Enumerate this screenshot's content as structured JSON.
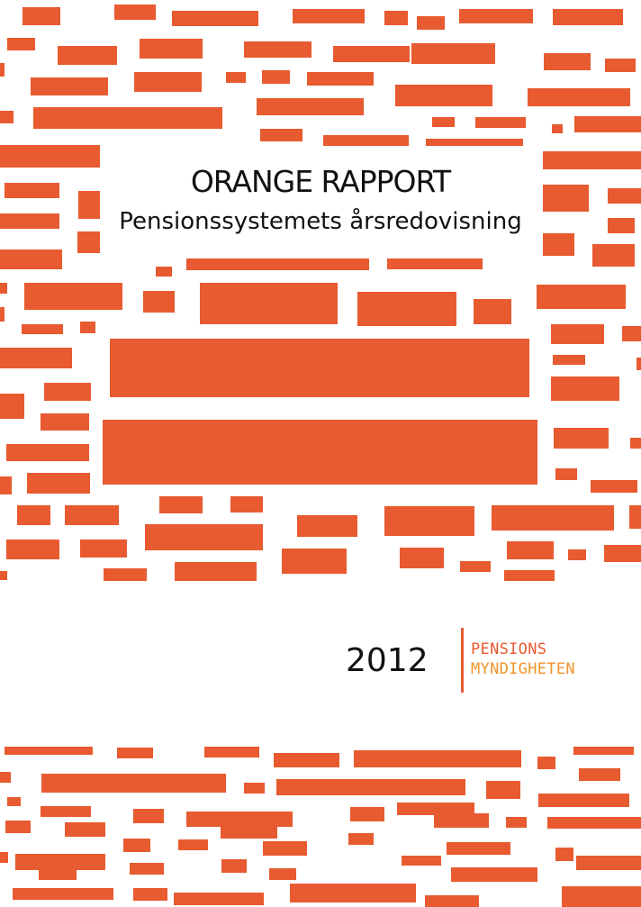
{
  "cover": {
    "title": "ORANGE RAPPORT",
    "subtitle": "Pensionssystemets årsredovisning",
    "year": "2012",
    "logo_line1": "PENSIONS",
    "logo_line2": "MYNDIGHETEN"
  },
  "colors": {
    "brand_orange": "#e85a30",
    "logo_line1": "#e85a30",
    "logo_line2": "#f0932b",
    "text": "#111111"
  },
  "decoration": "redacted-text-bar pattern"
}
